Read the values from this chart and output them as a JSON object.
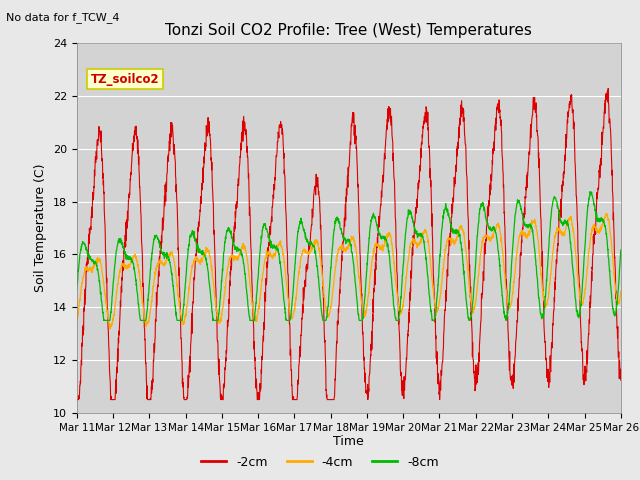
{
  "title": "Tonzi Soil CO2 Profile: Tree (West) Temperatures",
  "subtitle": "No data for f_TCW_4",
  "xlabel": "Time",
  "ylabel": "Soil Temperature (C)",
  "ylim": [
    10,
    24
  ],
  "yticks": [
    10,
    12,
    14,
    16,
    18,
    20,
    22,
    24
  ],
  "fig_bg": "#e8e8e8",
  "plot_bg": "#d3d3d3",
  "legend_label": "TZ_soilco2",
  "legend_box_facecolor": "#ffffcc",
  "legend_box_edgecolor": "#cccc00",
  "series_colors": {
    "-2cm": "#dd0000",
    "-4cm": "#ffaa00",
    "-8cm": "#00bb00"
  },
  "x_tick_labels": [
    "Mar 11",
    "Mar 12",
    "Mar 13",
    "Mar 14",
    "Mar 15",
    "Mar 16",
    "Mar 17",
    "Mar 18",
    "Mar 19",
    "Mar 20",
    "Mar 21",
    "Mar 22",
    "Mar 23",
    "Mar 24",
    "Mar 25",
    "Mar 26"
  ],
  "n_days": 15,
  "pts_per_day": 144
}
